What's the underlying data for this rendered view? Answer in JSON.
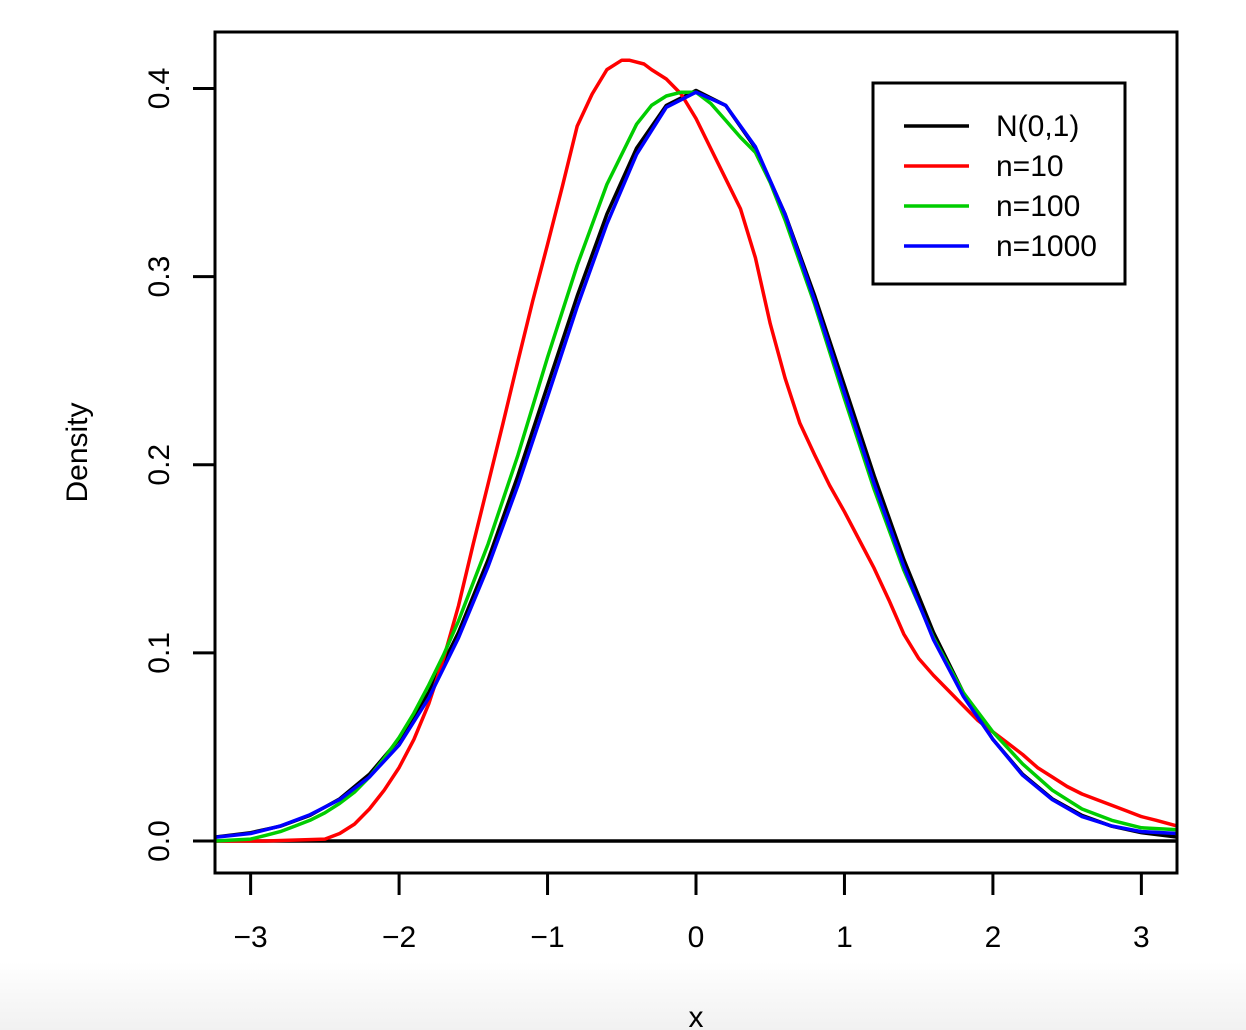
{
  "chart_data": {
    "type": "line",
    "title": "",
    "xlabel": "x",
    "ylabel": "Density",
    "xlim": [
      -3.24,
      3.24
    ],
    "ylim": [
      -0.017,
      0.43
    ],
    "x_ticks": [
      -3,
      -2,
      -1,
      0,
      1,
      2,
      3
    ],
    "x_tick_labels": [
      "−3",
      "−2",
      "−1",
      "0",
      "1",
      "2",
      "3"
    ],
    "y_ticks": [
      0.0,
      0.1,
      0.2,
      0.3,
      0.4
    ],
    "y_tick_labels": [
      "0.0",
      "0.1",
      "0.2",
      "0.3",
      "0.4"
    ],
    "baseline": 0,
    "legend_position": "top-right",
    "series": [
      {
        "name": "N(0,1)",
        "color": "#000000",
        "x": [
          -3.24,
          -3.0,
          -2.8,
          -2.6,
          -2.4,
          -2.2,
          -2.0,
          -1.8,
          -1.6,
          -1.4,
          -1.2,
          -1.0,
          -0.8,
          -0.6,
          -0.4,
          -0.2,
          0.0,
          0.2,
          0.4,
          0.6,
          0.8,
          1.0,
          1.2,
          1.4,
          1.6,
          1.8,
          2.0,
          2.2,
          2.4,
          2.6,
          2.8,
          3.0,
          3.24
        ],
        "y": [
          0.0021,
          0.0044,
          0.0079,
          0.0136,
          0.0224,
          0.0355,
          0.054,
          0.079,
          0.1109,
          0.1497,
          0.1942,
          0.242,
          0.2897,
          0.3332,
          0.3683,
          0.391,
          0.3989,
          0.391,
          0.3683,
          0.3332,
          0.2897,
          0.242,
          0.1942,
          0.1497,
          0.1109,
          0.079,
          0.054,
          0.0355,
          0.0224,
          0.0136,
          0.0079,
          0.0044,
          0.0021
        ]
      },
      {
        "name": "n=10",
        "color": "#ff0000",
        "x": [
          -3.24,
          -2.9,
          -2.5,
          -2.4,
          -2.3,
          -2.2,
          -2.1,
          -2.0,
          -1.9,
          -1.8,
          -1.7,
          -1.6,
          -1.5,
          -1.4,
          -1.3,
          -1.2,
          -1.1,
          -1.0,
          -0.9,
          -0.8,
          -0.7,
          -0.6,
          -0.5,
          -0.45,
          -0.35,
          -0.3,
          -0.2,
          -0.1,
          0.0,
          0.1,
          0.2,
          0.3,
          0.4,
          0.5,
          0.6,
          0.7,
          0.8,
          0.9,
          1.0,
          1.1,
          1.2,
          1.3,
          1.4,
          1.5,
          1.6,
          1.7,
          1.8,
          1.9,
          2.0,
          2.1,
          2.2,
          2.3,
          2.4,
          2.5,
          2.6,
          2.7,
          2.8,
          2.9,
          3.0,
          3.1,
          3.24
        ],
        "y": [
          0.0,
          0.0,
          0.001,
          0.004,
          0.009,
          0.017,
          0.027,
          0.039,
          0.054,
          0.073,
          0.097,
          0.125,
          0.158,
          0.19,
          0.222,
          0.255,
          0.287,
          0.317,
          0.348,
          0.38,
          0.397,
          0.41,
          0.415,
          0.415,
          0.413,
          0.41,
          0.405,
          0.397,
          0.384,
          0.368,
          0.352,
          0.336,
          0.31,
          0.275,
          0.246,
          0.222,
          0.205,
          0.189,
          0.175,
          0.16,
          0.145,
          0.128,
          0.11,
          0.097,
          0.088,
          0.08,
          0.072,
          0.064,
          0.058,
          0.052,
          0.046,
          0.039,
          0.034,
          0.029,
          0.025,
          0.022,
          0.019,
          0.016,
          0.013,
          0.011,
          0.008
        ]
      },
      {
        "name": "n=100",
        "color": "#00cd00",
        "x": [
          -3.24,
          -3.0,
          -2.9,
          -2.8,
          -2.7,
          -2.6,
          -2.5,
          -2.4,
          -2.3,
          -2.2,
          -2.1,
          -2.0,
          -1.9,
          -1.8,
          -1.7,
          -1.6,
          -1.4,
          -1.2,
          -1.0,
          -0.8,
          -0.6,
          -0.4,
          -0.3,
          -0.2,
          -0.1,
          0.0,
          0.1,
          0.2,
          0.3,
          0.4,
          0.5,
          0.6,
          0.8,
          1.0,
          1.2,
          1.4,
          1.6,
          1.8,
          2.0,
          2.2,
          2.4,
          2.6,
          2.8,
          3.0,
          3.24
        ],
        "y": [
          0.0,
          0.001,
          0.003,
          0.005,
          0.008,
          0.011,
          0.015,
          0.02,
          0.026,
          0.034,
          0.044,
          0.055,
          0.068,
          0.083,
          0.099,
          0.117,
          0.158,
          0.205,
          0.257,
          0.306,
          0.349,
          0.381,
          0.391,
          0.396,
          0.398,
          0.398,
          0.392,
          0.383,
          0.374,
          0.366,
          0.35,
          0.33,
          0.285,
          0.235,
          0.187,
          0.144,
          0.108,
          0.079,
          0.058,
          0.041,
          0.027,
          0.017,
          0.011,
          0.007,
          0.006
        ]
      },
      {
        "name": "n=1000",
        "color": "#0000ff",
        "x": [
          -3.24,
          -3.0,
          -2.8,
          -2.6,
          -2.4,
          -2.2,
          -2.0,
          -1.8,
          -1.6,
          -1.4,
          -1.2,
          -1.0,
          -0.8,
          -0.6,
          -0.4,
          -0.2,
          0.0,
          0.2,
          0.4,
          0.6,
          0.8,
          1.0,
          1.2,
          1.4,
          1.6,
          1.8,
          2.0,
          2.2,
          2.4,
          2.6,
          2.8,
          3.0,
          3.24
        ],
        "y": [
          0.002,
          0.004,
          0.008,
          0.014,
          0.022,
          0.034,
          0.051,
          0.076,
          0.108,
          0.146,
          0.189,
          0.236,
          0.284,
          0.328,
          0.365,
          0.39,
          0.398,
          0.391,
          0.369,
          0.333,
          0.287,
          0.238,
          0.19,
          0.146,
          0.107,
          0.077,
          0.054,
          0.035,
          0.022,
          0.013,
          0.008,
          0.005,
          0.004
        ]
      }
    ]
  }
}
